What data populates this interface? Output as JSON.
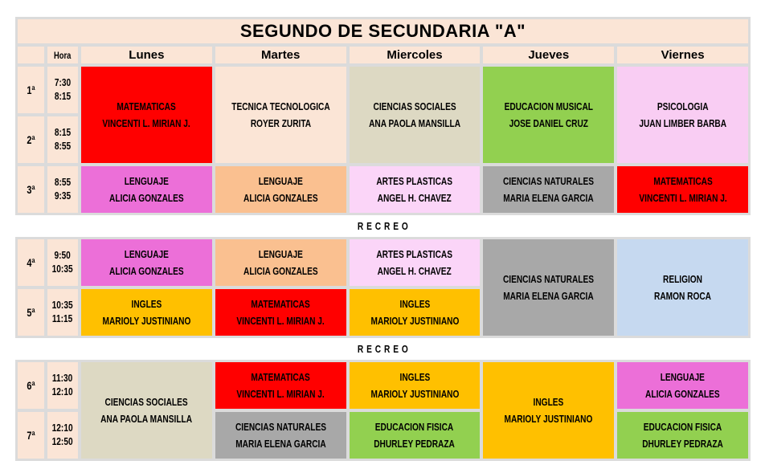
{
  "title": "SEGUNDO DE SECUNDARIA \"A\"",
  "recreo_label": "RECREO",
  "header": {
    "hora_label": "Hora",
    "days": {
      "lunes": "Lunes",
      "martes": "Martes",
      "miercoles": "Miercoles",
      "jueves": "Jueves",
      "viernes": "Viernes"
    }
  },
  "periods": {
    "p1": {
      "num": "1ª",
      "start": "7:30",
      "end": "8:15"
    },
    "p2": {
      "num": "2ª",
      "start": "8:15",
      "end": "8:55"
    },
    "p3": {
      "num": "3ª",
      "start": "8:55",
      "end": "9:35"
    },
    "p4": {
      "num": "4ª",
      "start": "9:50",
      "end": "10:35"
    },
    "p5": {
      "num": "5ª",
      "start": "10:35",
      "end": "11:15"
    },
    "p6": {
      "num": "6ª",
      "start": "11:30",
      "end": "12:10"
    },
    "p7": {
      "num": "7ª",
      "start": "12:10",
      "end": "12:50"
    }
  },
  "colors": {
    "peach": "#FBE5D6",
    "grid": "#DBDBDB",
    "band_white": "#FFFFFF",
    "red": "#FF0000",
    "beige": "#DDD9C3",
    "green": "#92D050",
    "light_pink": "#F9CDF3",
    "magenta": "#EC6FD8",
    "orange": "#FAC090",
    "gray": "#A8A8A8",
    "yellow": "#FFC000",
    "light_blue": "#C6D9F0"
  },
  "cells": {
    "lunes_p1_p2": {
      "subject": "MATEMATICAS",
      "teacher": "VINCENTI L. MIRIAN J.",
      "color": "#FF0000"
    },
    "martes_p1_p2": {
      "subject": "TECNICA TECNOLOGICA",
      "teacher": "ROYER ZURITA",
      "color": "#FBE5D6"
    },
    "miercoles_p1_p2": {
      "subject": "CIENCIAS SOCIALES",
      "teacher": "ANA PAOLA MANSILLA",
      "color": "#DDD9C3"
    },
    "jueves_p1_p2": {
      "subject": "EDUCACION MUSICAL",
      "teacher": "JOSE DANIEL CRUZ",
      "color": "#92D050"
    },
    "viernes_p1_p2": {
      "subject": "PSICOLOGIA",
      "teacher": "JUAN LIMBER BARBA",
      "color": "#F9CDF3"
    },
    "lunes_p3": {
      "subject": "LENGUAJE",
      "teacher": "ALICIA GONZALES",
      "color": "#EC6FD8"
    },
    "martes_p3": {
      "subject": "LENGUAJE",
      "teacher": "ALICIA GONZALES",
      "color": "#FAC090"
    },
    "miercoles_p3": {
      "subject": "ARTES PLASTICAS",
      "teacher": "ANGEL H. CHAVEZ",
      "color": "#FBD5F8"
    },
    "jueves_p3": {
      "subject": "CIENCIAS NATURALES",
      "teacher": "MARIA ELENA GARCIA",
      "color": "#A8A8A8"
    },
    "viernes_p3": {
      "subject": "MATEMATICAS",
      "teacher": "VINCENTI L. MIRIAN J.",
      "color": "#FF0000"
    },
    "lunes_p4": {
      "subject": "LENGUAJE",
      "teacher": "ALICIA GONZALES",
      "color": "#EC6FD8"
    },
    "martes_p4": {
      "subject": "LENGUAJE",
      "teacher": "ALICIA GONZALES",
      "color": "#FAC090"
    },
    "miercoles_p4": {
      "subject": "ARTES PLASTICAS",
      "teacher": "ANGEL H. CHAVEZ",
      "color": "#FBD5F8"
    },
    "jueves_p4_p5": {
      "subject": "CIENCIAS NATURALES",
      "teacher": "MARIA ELENA GARCIA",
      "color": "#A8A8A8"
    },
    "viernes_p4_p5": {
      "subject": "RELIGION",
      "teacher": "RAMON ROCA",
      "color": "#C6D9F0"
    },
    "lunes_p5": {
      "subject": "INGLES",
      "teacher": "MARIOLY JUSTINIANO",
      "color": "#FFC000"
    },
    "martes_p5": {
      "subject": "MATEMATICAS",
      "teacher": "VINCENTI L. MIRIAN J.",
      "color": "#FF0000"
    },
    "miercoles_p5": {
      "subject": "INGLES",
      "teacher": "MARIOLY JUSTINIANO",
      "color": "#FFC000"
    },
    "lunes_p6_p7": {
      "subject": "CIENCIAS SOCIALES",
      "teacher": "ANA PAOLA MANSILLA",
      "color": "#DDD9C3"
    },
    "martes_p6": {
      "subject": "MATEMATICAS",
      "teacher": "VINCENTI L. MIRIAN J.",
      "color": "#FF0000"
    },
    "miercoles_p6": {
      "subject": "INGLES",
      "teacher": "MARIOLY JUSTINIANO",
      "color": "#FFC000"
    },
    "jueves_p6_p7": {
      "subject": "INGLES",
      "teacher": "MARIOLY JUSTINIANO",
      "color": "#FFC000"
    },
    "viernes_p6": {
      "subject": "LENGUAJE",
      "teacher": "ALICIA GONZALES",
      "color": "#EC6FD8"
    },
    "martes_p7": {
      "subject": "CIENCIAS NATURALES",
      "teacher": "MARIA ELENA GARCIA",
      "color": "#A8A8A8"
    },
    "miercoles_p7": {
      "subject": "EDUCACION FISICA",
      "teacher": "DHURLEY PEDRAZA",
      "color": "#92D050"
    },
    "viernes_p7": {
      "subject": "EDUCACION FISICA",
      "teacher": "DHURLEY PEDRAZA",
      "color": "#92D050"
    }
  }
}
